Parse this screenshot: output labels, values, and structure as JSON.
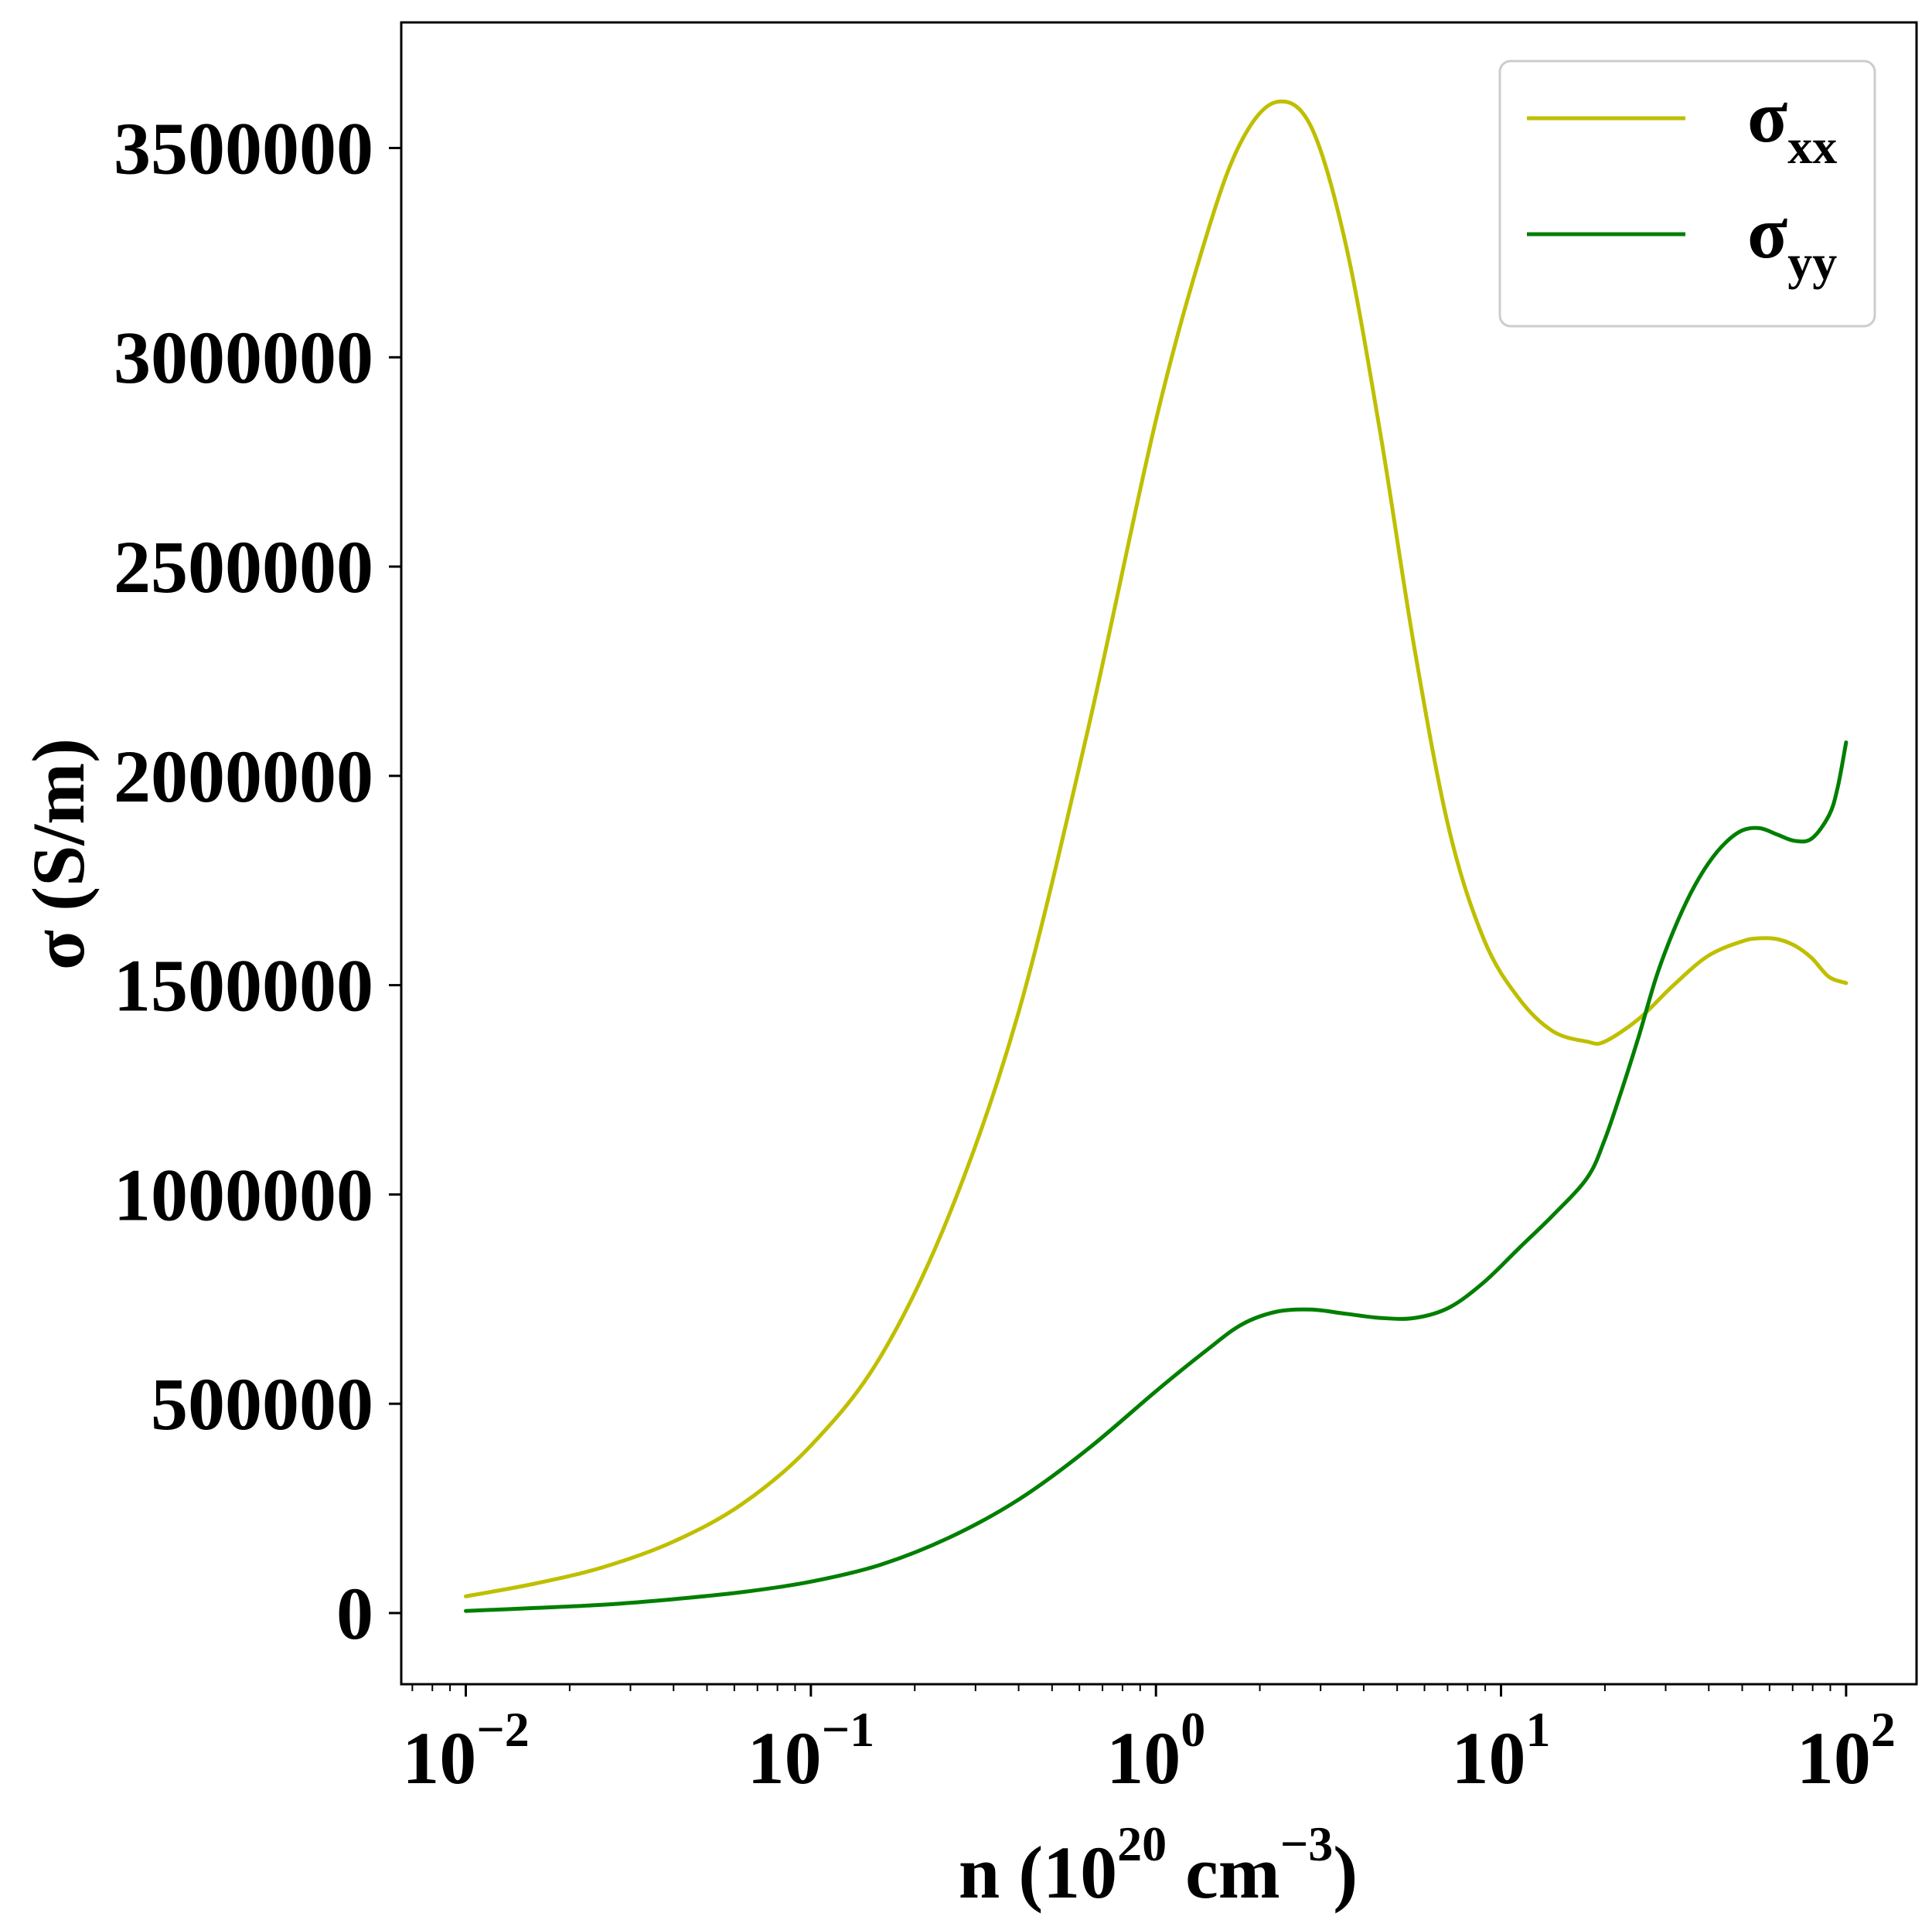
{
  "chart_data": {
    "type": "line",
    "title": "",
    "xlabel": {
      "base": "n (10",
      "exp1": "20",
      "mid": " cm",
      "exp2": "−3",
      "tail": ")"
    },
    "ylabel": "σ (S/m)",
    "xscale": "log",
    "xlim": [
      0.0065,
      160
    ],
    "ylim": [
      -170000,
      3800000
    ],
    "x_ticks": [
      {
        "base": "10",
        "exp": "−2",
        "value": 0.01
      },
      {
        "base": "10",
        "exp": "−1",
        "value": 0.1
      },
      {
        "base": "10",
        "exp": "0",
        "value": 1
      },
      {
        "base": "10",
        "exp": "1",
        "value": 10
      },
      {
        "base": "10",
        "exp": "2",
        "value": 100
      }
    ],
    "y_ticks": [
      {
        "label": "0",
        "value": 0
      },
      {
        "label": "500000",
        "value": 500000
      },
      {
        "label": "1000000",
        "value": 1000000
      },
      {
        "label": "1500000",
        "value": 1500000
      },
      {
        "label": "2000000",
        "value": 2000000
      },
      {
        "label": "2500000",
        "value": 2500000
      },
      {
        "label": "3000000",
        "value": 3000000
      },
      {
        "label": "3500000",
        "value": 3500000
      }
    ],
    "legend_position": "top-right",
    "grid": false,
    "series": [
      {
        "name": "σ",
        "subscript": "xx",
        "color": "#bfbf00",
        "x": [
          0.01,
          0.0158,
          0.0251,
          0.0398,
          0.0631,
          0.1,
          0.1585,
          0.2512,
          0.3981,
          0.631,
          1.0,
          1.4125,
          1.7783,
          2.2387,
          2.8184,
          3.5481,
          4.4668,
          5.6234,
          7.0795,
          8.9125,
          11.22,
          14.125,
          17.783,
          19.953,
          25.119,
          31.623,
          39.811,
          50.119,
          56.234,
          63.096,
          70.795,
          79.433,
          89.125,
          100.0
        ],
        "y": [
          40000,
          70000,
          110000,
          170000,
          260000,
          400000,
          610000,
          950000,
          1430000,
          2100000,
          2850000,
          3300000,
          3520000,
          3610000,
          3550000,
          3270000,
          2820000,
          2300000,
          1870000,
          1610000,
          1470000,
          1390000,
          1365000,
          1365000,
          1420000,
          1500000,
          1570000,
          1605000,
          1612000,
          1610000,
          1595000,
          1565000,
          1520000,
          1505000
        ]
      },
      {
        "name": "σ",
        "subscript": "yy",
        "color": "#007f00",
        "x": [
          0.01,
          0.0158,
          0.0251,
          0.0398,
          0.0631,
          0.1,
          0.1585,
          0.2512,
          0.3981,
          0.631,
          1.0,
          1.4125,
          1.7783,
          2.2387,
          2.8184,
          3.5481,
          4.4668,
          5.6234,
          7.0795,
          8.9125,
          11.22,
          14.125,
          17.783,
          19.953,
          22.387,
          25.119,
          28.184,
          31.623,
          35.481,
          39.811,
          44.668,
          50.119,
          56.234,
          63.096,
          70.795,
          79.433,
          89.125,
          94.406,
          100.0
        ],
        "y": [
          5000,
          12000,
          20000,
          33000,
          50000,
          75000,
          115000,
          180000,
          270000,
          390000,
          530000,
          630000,
          690000,
          720000,
          725000,
          715000,
          705000,
          705000,
          730000,
          790000,
          870000,
          950000,
          1040000,
          1130000,
          1250000,
          1380000,
          1520000,
          1630000,
          1720000,
          1790000,
          1840000,
          1870000,
          1875000,
          1860000,
          1845000,
          1850000,
          1905000,
          1970000,
          2080000
        ]
      }
    ]
  }
}
